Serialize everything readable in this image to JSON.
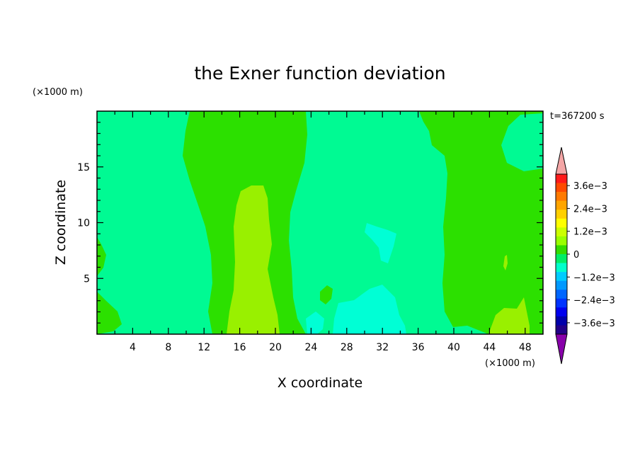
{
  "chart_data": {
    "type": "heatmap",
    "title": "the Exner function deviation",
    "time_label": "t=367200 s",
    "xlabel": "X coordinate",
    "ylabel": "Z coordinate",
    "x_unit": "(×1000 m)",
    "y_unit": "(×1000 m)",
    "xlim": [
      0,
      50
    ],
    "ylim": [
      0,
      20
    ],
    "x_ticks": [
      4,
      8,
      12,
      16,
      20,
      24,
      28,
      32,
      36,
      40,
      44,
      48
    ],
    "y_ticks": [
      5,
      10,
      15
    ],
    "colorbar": {
      "labels": [
        "3.6e−3",
        "2.4e−3",
        "1.2e−3",
        "0",
        "−1.2e−3",
        "−2.4e−3",
        "−3.6e−3"
      ],
      "label_values": [
        0.0036,
        0.0024,
        0.0012,
        0,
        -0.0012,
        -0.0024,
        -0.0036
      ],
      "colors_top_to_bottom": [
        "#ff1a1a",
        "#ff4a00",
        "#ff7a00",
        "#ffa500",
        "#ffd000",
        "#ffff00",
        "#ccff00",
        "#99ff00",
        "#33dd00",
        "#00ee66",
        "#00ffcc",
        "#00ccff",
        "#0099ff",
        "#0066ff",
        "#0033ff",
        "#0000ee",
        "#0000aa",
        "#220088"
      ],
      "over_color": "#f4a6a6",
      "under_color": "#8800aa"
    },
    "colors": {
      "near_zero_negative": "#00fa93",
      "near_zero_positive": "#2ce000",
      "positive_1e-3": "#99f000",
      "negative_1e-3": "#00ffd5"
    }
  }
}
